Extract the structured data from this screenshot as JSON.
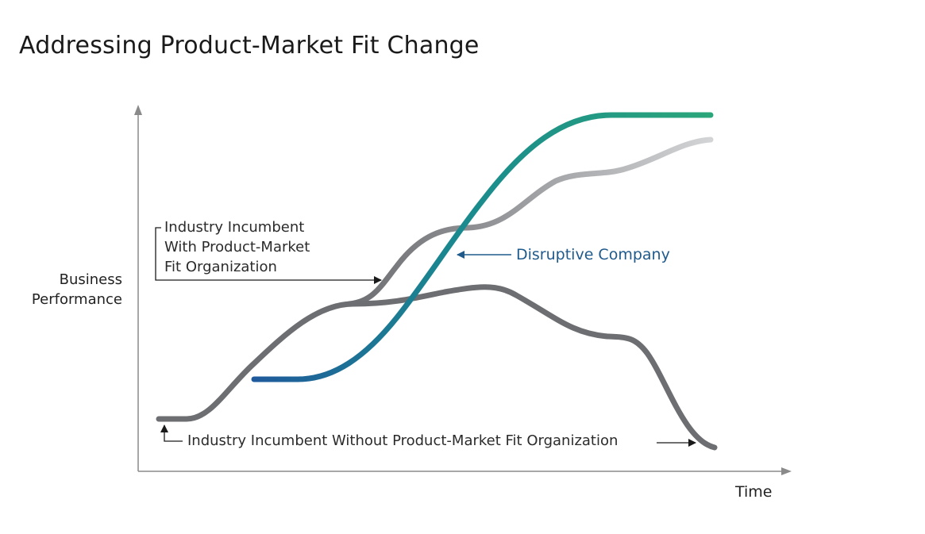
{
  "title": "Addressing Product-Market Fit Change",
  "axes": {
    "y_label_lines": [
      "Business",
      "Performance"
    ],
    "x_label": "Time"
  },
  "annotations": {
    "incumbent_with_fit_lines": [
      "Industry Incumbent",
      "With Product-Market",
      "Fit Organization"
    ],
    "incumbent_without_fit": "Industry Incumbent Without Product-Market Fit Organization",
    "disruptive_company": "Disruptive Company"
  },
  "colors": {
    "incumbent_without_fit": "#6d6e71",
    "incumbent_with_fit_gradient": [
      "#6d6e71",
      "#cfd0d2"
    ],
    "disruptive_gradient": [
      "#1f5a9c",
      "#2aa67a"
    ],
    "disruptive_label": "#1f5a8c",
    "axis": "#8a8a8a"
  }
}
